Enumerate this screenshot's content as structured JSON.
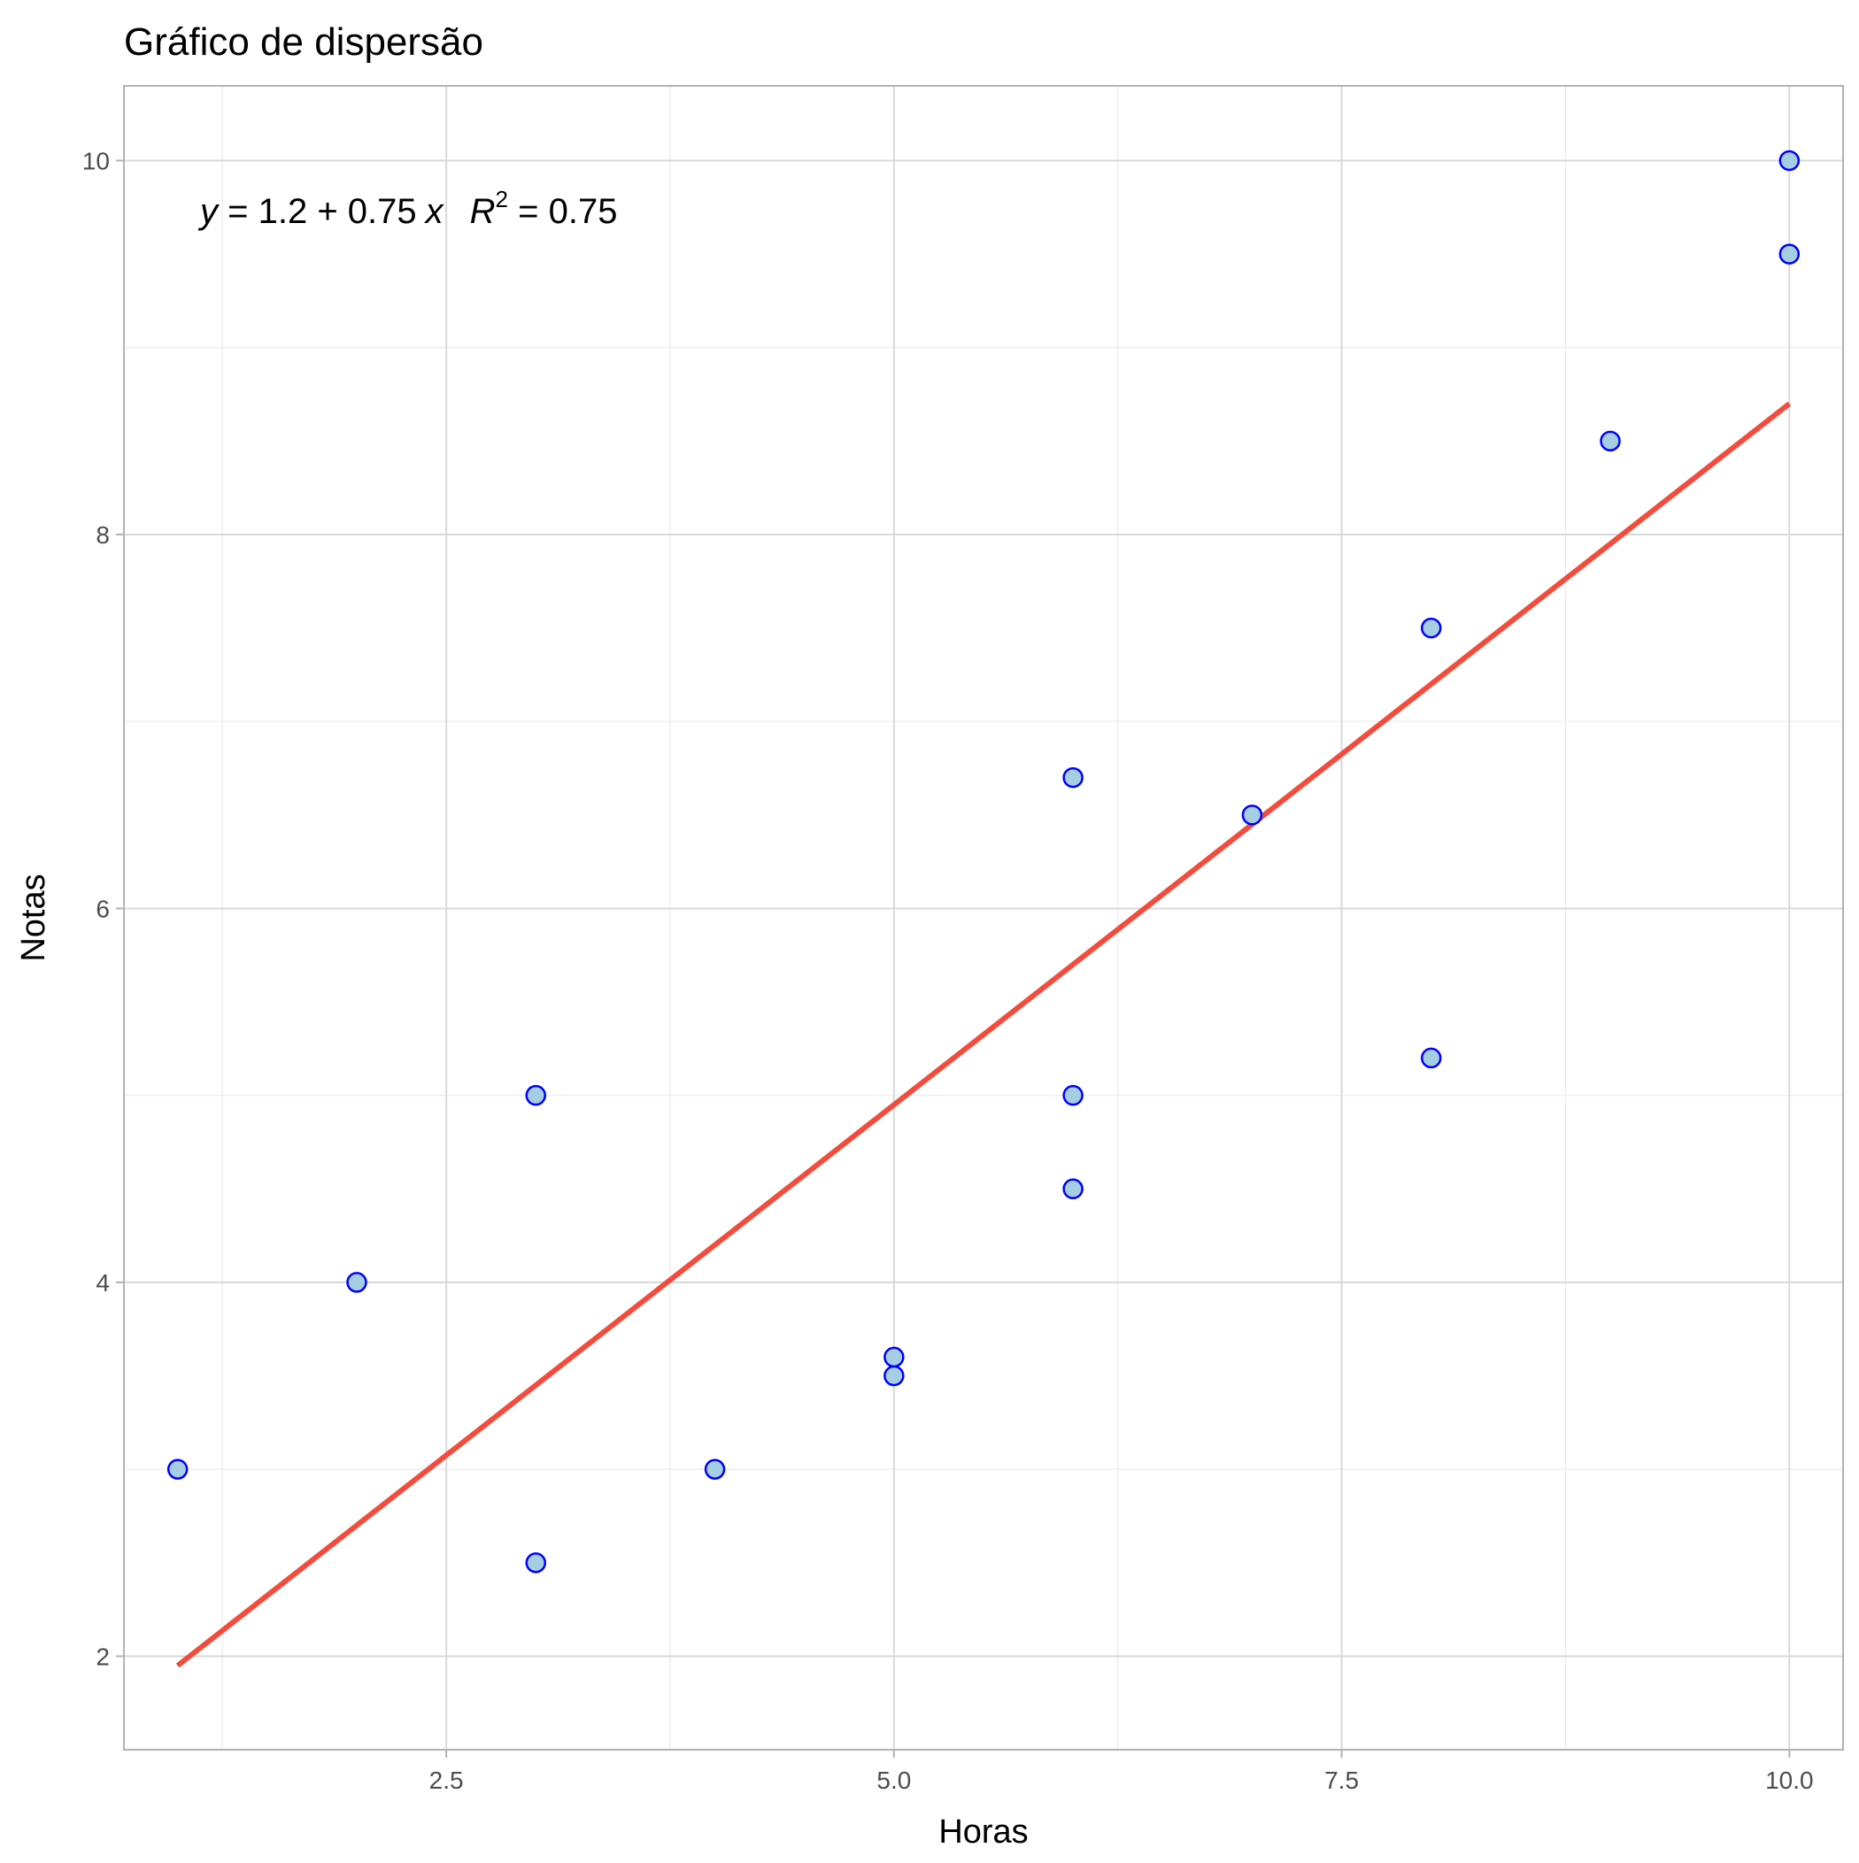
{
  "chart_data": {
    "type": "scatter",
    "title": "Gráfico de dispersão",
    "xlabel": "Horas",
    "ylabel": "Notas",
    "xlim": [
      0.7,
      10.3
    ],
    "ylim": [
      1.5,
      10.4
    ],
    "x_ticks": [
      2.5,
      5.0,
      7.5,
      10.0
    ],
    "x_tick_labels": [
      "2.5",
      "5.0",
      "7.5",
      "10.0"
    ],
    "y_ticks": [
      2,
      4,
      6,
      8,
      10
    ],
    "y_tick_labels": [
      "2",
      "4",
      "6",
      "8",
      "10"
    ],
    "grid": true,
    "legend": "none",
    "point_fill": "#a6cee3",
    "point_stroke": "#0000ff",
    "series": [
      {
        "points": [
          {
            "x": 1,
            "y": 3.0
          },
          {
            "x": 2,
            "y": 4.0
          },
          {
            "x": 3,
            "y": 2.5
          },
          {
            "x": 3,
            "y": 5.0
          },
          {
            "x": 4,
            "y": 3.0
          },
          {
            "x": 5,
            "y": 3.5
          },
          {
            "x": 5,
            "y": 3.6
          },
          {
            "x": 6,
            "y": 4.5
          },
          {
            "x": 6,
            "y": 5.0
          },
          {
            "x": 6,
            "y": 6.7
          },
          {
            "x": 7,
            "y": 6.5
          },
          {
            "x": 8,
            "y": 5.2
          },
          {
            "x": 8,
            "y": 7.5
          },
          {
            "x": 9,
            "y": 8.5
          },
          {
            "x": 10,
            "y": 9.5
          },
          {
            "x": 10,
            "y": 10.0
          }
        ]
      }
    ],
    "regression_line": {
      "intercept": 1.2,
      "slope": 0.75,
      "x_range": [
        1,
        10
      ],
      "color": "#f44c3c"
    },
    "annotation": {
      "y_symbol": "y",
      "equals_1": " = ",
      "intercept_text": "1.2",
      "plus": " + ",
      "slope_text": "0.75",
      "x_symbol": "x",
      "r_symbol": "R",
      "r_exponent": "2",
      "equals_2": " = ",
      "r2_value": "0.75"
    }
  }
}
